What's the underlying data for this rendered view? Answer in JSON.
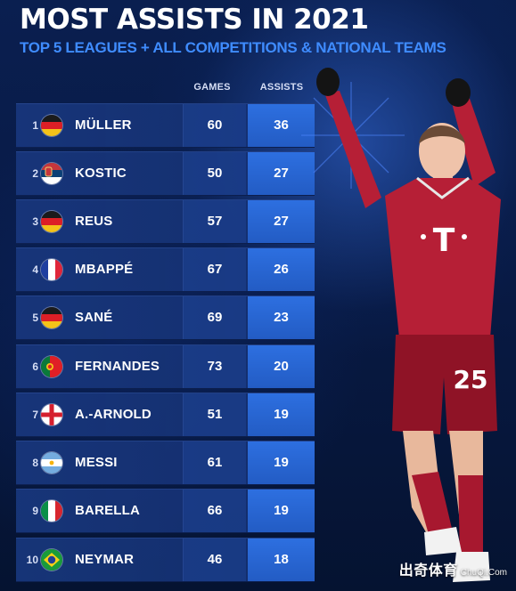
{
  "header": {
    "title": "MOST ASSISTS IN 2021",
    "subtitle": "TOP 5 LEAGUES + ALL COMPETITIONS & NATIONAL TEAMS"
  },
  "table": {
    "columns": {
      "games": "GAMES",
      "assists": "ASSISTS"
    },
    "rows": [
      {
        "rank": "1",
        "name": "MÜLLER",
        "games": "60",
        "assists": "36",
        "flag": "germany-flag"
      },
      {
        "rank": "2",
        "name": "KOSTIC",
        "games": "50",
        "assists": "27",
        "flag": "serbia-flag"
      },
      {
        "rank": "3",
        "name": "REUS",
        "games": "57",
        "assists": "27",
        "flag": "germany-flag"
      },
      {
        "rank": "4",
        "name": "MBAPPÉ",
        "games": "67",
        "assists": "26",
        "flag": "france-flag"
      },
      {
        "rank": "5",
        "name": "SANÉ",
        "games": "69",
        "assists": "23",
        "flag": "germany-flag"
      },
      {
        "rank": "6",
        "name": "FERNANDES",
        "games": "73",
        "assists": "20",
        "flag": "portugal-flag"
      },
      {
        "rank": "7",
        "name": "A.-ARNOLD",
        "games": "51",
        "assists": "19",
        "flag": "england-flag"
      },
      {
        "rank": "8",
        "name": "MESSI",
        "games": "61",
        "assists": "19",
        "flag": "argentina-flag"
      },
      {
        "rank": "9",
        "name": "BARELLA",
        "games": "66",
        "assists": "19",
        "flag": "italy-flag"
      },
      {
        "rank": "10",
        "name": "NEYMAR",
        "games": "46",
        "assists": "18",
        "flag": "brazil-flag"
      }
    ]
  },
  "player_art": {
    "subject": "celebrating-player",
    "shirt_number": "25",
    "sponsor_mark": "T"
  },
  "watermark": {
    "brand": "出奇体育",
    "site": "ChuQi.Com"
  },
  "colors": {
    "background": "#061436",
    "title": "#ffffff",
    "subtitle": "#3f8cff",
    "row": "#18377d",
    "assists_cell": "#2d6fe0",
    "jersey": "#b61f36"
  }
}
